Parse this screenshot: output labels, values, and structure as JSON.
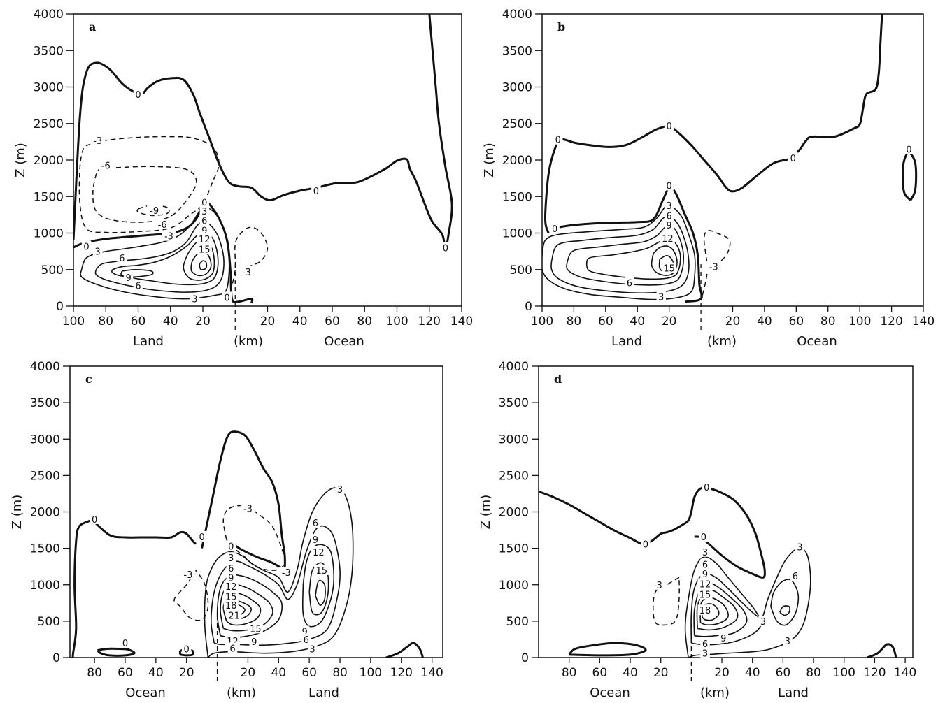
{
  "chart_data": [
    {
      "type": "contour",
      "panel": "a",
      "ylabel": "Z (m)",
      "xlabel": "(km)",
      "region_left": "Land",
      "region_right": "Ocean",
      "yticks": [
        "0",
        "500",
        "1000",
        "1500",
        "2000",
        "2500",
        "3000",
        "3500",
        "4000"
      ],
      "xticks": [
        "100",
        "80",
        "60",
        "40",
        "20",
        "20",
        "40",
        "60",
        "80",
        "100",
        "120",
        "140"
      ],
      "contour_labels": [
        {
          "text": "0",
          "x": -60,
          "z": 2900
        },
        {
          "text": "0",
          "x": 50,
          "z": 1580
        },
        {
          "text": "0",
          "x": 130,
          "z": 800
        },
        {
          "text": "0",
          "x": -92,
          "z": 820
        },
        {
          "text": "0",
          "x": -19,
          "z": 1420
        },
        {
          "text": "0",
          "x": -5,
          "z": 120
        },
        {
          "text": "-3",
          "x": -85,
          "z": 2270
        },
        {
          "text": "-6",
          "x": -80,
          "z": 1930
        },
        {
          "text": "-9",
          "x": -50,
          "z": 1310
        },
        {
          "text": "-6",
          "x": -45,
          "z": 1120
        },
        {
          "text": "-3",
          "x": -41,
          "z": 960
        },
        {
          "text": "3",
          "x": -19,
          "z": 1300
        },
        {
          "text": "6",
          "x": -19,
          "z": 1170
        },
        {
          "text": "9",
          "x": -19,
          "z": 1040
        },
        {
          "text": "12",
          "x": -19,
          "z": 920
        },
        {
          "text": "15",
          "x": -19,
          "z": 780
        },
        {
          "text": "3",
          "x": -85,
          "z": 750
        },
        {
          "text": "6",
          "x": -70,
          "z": 660
        },
        {
          "text": "9",
          "x": -66,
          "z": 390
        },
        {
          "text": "6",
          "x": -60,
          "z": 280
        },
        {
          "text": "3",
          "x": -25,
          "z": 100
        },
        {
          "text": "-3",
          "x": 7,
          "z": 470
        }
      ]
    },
    {
      "type": "contour",
      "panel": "b",
      "ylabel": "Z (m)",
      "xlabel": "(km)",
      "region_left": "Land",
      "region_right": "Ocean",
      "yticks": [
        "0",
        "500",
        "1000",
        "1500",
        "2000",
        "2500",
        "3000",
        "3500",
        "4000"
      ],
      "xticks": [
        "100",
        "80",
        "60",
        "40",
        "20",
        "20",
        "40",
        "60",
        "80",
        "100",
        "120",
        "140"
      ],
      "contour_labels": [
        {
          "text": "0",
          "x": -90,
          "z": 2280
        },
        {
          "text": "0",
          "x": -20,
          "z": 2470
        },
        {
          "text": "0",
          "x": 58,
          "z": 2030
        },
        {
          "text": "0",
          "x": 131,
          "z": 2150
        },
        {
          "text": "0",
          "x": -92,
          "z": 1060
        },
        {
          "text": "0",
          "x": -20,
          "z": 1650
        },
        {
          "text": "3",
          "x": -20,
          "z": 1380
        },
        {
          "text": "6",
          "x": -20,
          "z": 1240
        },
        {
          "text": "9",
          "x": -20,
          "z": 1110
        },
        {
          "text": "12",
          "x": -21,
          "z": 930
        },
        {
          "text": "15",
          "x": -20,
          "z": 520
        },
        {
          "text": "6",
          "x": -45,
          "z": 320
        },
        {
          "text": "3",
          "x": -25,
          "z": 130
        },
        {
          "text": "-3",
          "x": 8,
          "z": 540
        }
      ]
    },
    {
      "type": "contour",
      "panel": "c",
      "ylabel": "Z (m)",
      "xlabel": "(km)",
      "region_left": "Ocean",
      "region_right": "Land",
      "yticks": [
        "0",
        "500",
        "1000",
        "1500",
        "2000",
        "2500",
        "3000",
        "3500",
        "4000"
      ],
      "xticks": [
        "80",
        "60",
        "40",
        "20",
        "20",
        "40",
        "60",
        "80",
        "100",
        "120",
        "140"
      ],
      "contour_labels": [
        {
          "text": "0",
          "x": -80,
          "z": 1900
        },
        {
          "text": "0",
          "x": -10,
          "z": 1660
        },
        {
          "text": "0",
          "x": -60,
          "z": 200
        },
        {
          "text": "0",
          "x": -20,
          "z": 120
        },
        {
          "text": "-3",
          "x": 20,
          "z": 2050
        },
        {
          "text": "-3",
          "x": -19,
          "z": 1140
        },
        {
          "text": "-3",
          "x": 45,
          "z": 1170
        },
        {
          "text": "0",
          "x": 9,
          "z": 1530
        },
        {
          "text": "3",
          "x": 9,
          "z": 1370
        },
        {
          "text": "6",
          "x": 9,
          "z": 1230
        },
        {
          "text": "9",
          "x": 9,
          "z": 1100
        },
        {
          "text": "12",
          "x": 9,
          "z": 980
        },
        {
          "text": "15",
          "x": 9,
          "z": 840
        },
        {
          "text": "18",
          "x": 9,
          "z": 720
        },
        {
          "text": "21",
          "x": 11,
          "z": 580
        },
        {
          "text": "15",
          "x": 25,
          "z": 400
        },
        {
          "text": "12",
          "x": 10,
          "z": 230
        },
        {
          "text": "9",
          "x": 24,
          "z": 220
        },
        {
          "text": "6",
          "x": 10,
          "z": 130
        },
        {
          "text": "3",
          "x": 80,
          "z": 2310
        },
        {
          "text": "6",
          "x": 64,
          "z": 1850
        },
        {
          "text": "9",
          "x": 64,
          "z": 1620
        },
        {
          "text": "12",
          "x": 66,
          "z": 1450
        },
        {
          "text": "15",
          "x": 68,
          "z": 1200
        },
        {
          "text": "9",
          "x": 57,
          "z": 360
        },
        {
          "text": "6",
          "x": 58,
          "z": 250
        },
        {
          "text": "3",
          "x": 62,
          "z": 120
        }
      ]
    },
    {
      "type": "contour",
      "panel": "d",
      "ylabel": "Z (m)",
      "xlabel": "(km)",
      "region_left": "Ocean",
      "region_right": "Land",
      "yticks": [
        "0",
        "500",
        "1000",
        "1500",
        "2000",
        "2500",
        "3000",
        "3500",
        "4000"
      ],
      "xticks": [
        "80",
        "60",
        "40",
        "20",
        "20",
        "40",
        "60",
        "80",
        "100",
        "120",
        "140"
      ],
      "contour_labels": [
        {
          "text": "0",
          "x": -30,
          "z": 1560
        },
        {
          "text": "0",
          "x": 10,
          "z": 2340
        },
        {
          "text": "0",
          "x": 8,
          "z": 1660
        },
        {
          "text": "-3",
          "x": -22,
          "z": 1000
        },
        {
          "text": "3",
          "x": 9,
          "z": 1450
        },
        {
          "text": "6",
          "x": 9,
          "z": 1280
        },
        {
          "text": "9",
          "x": 9,
          "z": 1150
        },
        {
          "text": "12",
          "x": 9,
          "z": 1010
        },
        {
          "text": "15",
          "x": 9,
          "z": 870
        },
        {
          "text": "18",
          "x": 9,
          "z": 650
        },
        {
          "text": "9",
          "x": 21,
          "z": 270
        },
        {
          "text": "6",
          "x": 9,
          "z": 190
        },
        {
          "text": "3",
          "x": 9,
          "z": 60
        },
        {
          "text": "3",
          "x": 47,
          "z": 500
        },
        {
          "text": "3",
          "x": 71,
          "z": 1520
        },
        {
          "text": "6",
          "x": 68,
          "z": 1120
        },
        {
          "text": "3",
          "x": 63,
          "z": 230
        }
      ]
    }
  ]
}
